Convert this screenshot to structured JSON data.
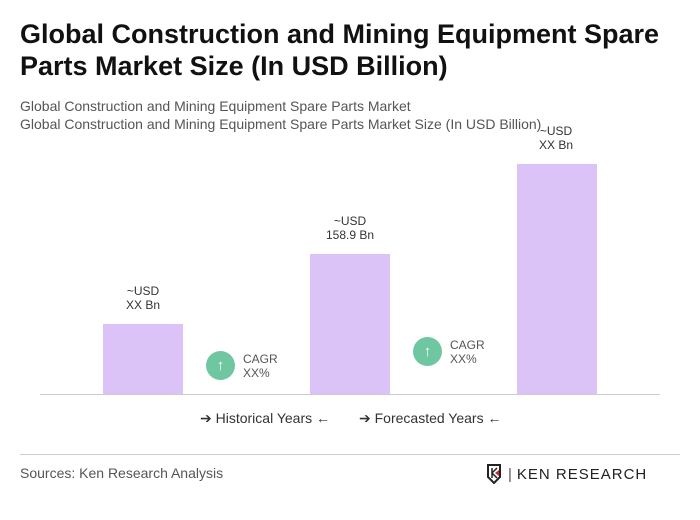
{
  "title": "Global Construction and Mining Equipment Spare Parts Market Size (In USD Billion)",
  "subtitle1": "Global Construction and Mining Equipment Spare Parts Market",
  "subtitle2": "Global Construction and Mining Equipment Spare Parts Market Size (In USD Billion)",
  "chart_data": {
    "type": "bar",
    "values": [
      "XX",
      158.9,
      "XX"
    ],
    "data_labels": [
      [
        "~USD",
        "XX Bn"
      ],
      [
        "~USD",
        "158.9 Bn"
      ],
      [
        "~USD",
        "XX Bn"
      ]
    ],
    "cagr": [
      {
        "label": "CAGR",
        "value": "XX%"
      },
      {
        "label": "CAGR",
        "value": "XX%"
      }
    ],
    "legend": [
      "Historical Years",
      "Forecasted Years"
    ],
    "bar_color": "#dcc3f7",
    "cagr_color": "#6fc7a2"
  },
  "source": "Sources: Ken Research Analysis",
  "logo": "KEN RESEARCH"
}
